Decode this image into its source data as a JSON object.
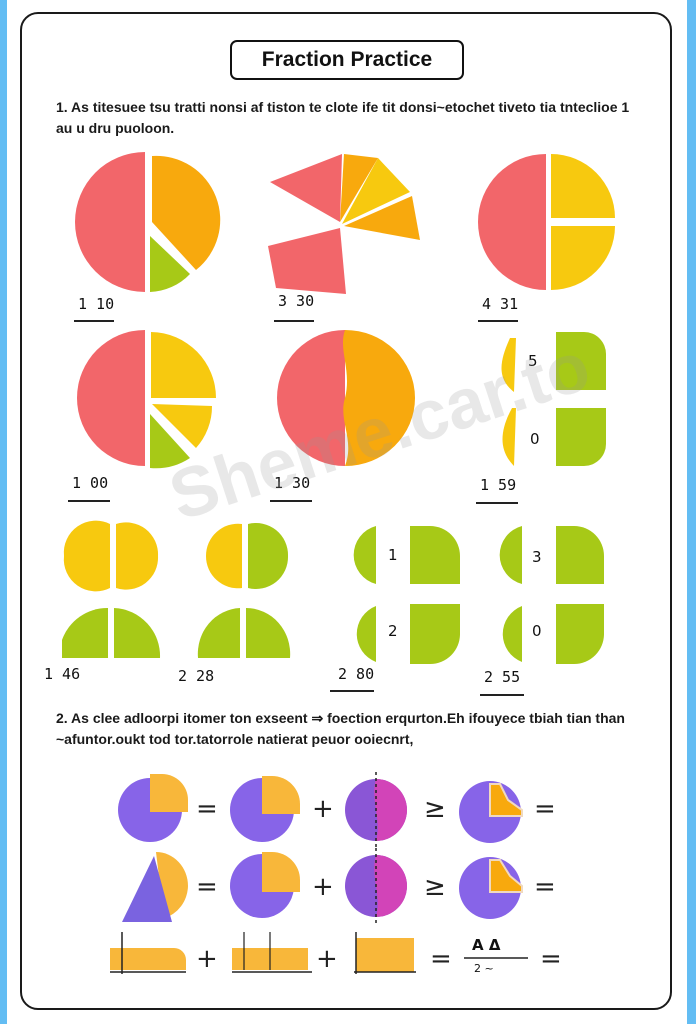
{
  "worksheet": {
    "title": "Fraction Practice",
    "instruction_1": "1.  As titesuee tsu tratti nonsi af tiston te clote ife tit donsi~etochet tiveto tia tnteclioe 1 au u dru puoloon.",
    "instruction_2": "2.  As clee adloorpi itomer ton exseent ⇒ foection erqurton.Eh ifouyece tbiah tian than ~afuntor.oukt tod tor.tatorrole natierat peuor ooiecnrt,",
    "watermark": "Sheme.car.to"
  },
  "pie_labels": [
    "1 10",
    "3 30",
    "4 31",
    "1 00",
    "1 30",
    "1 59"
  ],
  "tile_numbers_row2": [
    "5",
    "0"
  ],
  "quarter_labels": [
    "1 46",
    "2 28",
    "2 80",
    "2 55"
  ],
  "quarter_numbers": [
    "1",
    "2",
    "3",
    "0"
  ],
  "equation_ops": [
    "=",
    "+",
    "≥",
    "="
  ],
  "bottom_row": {
    "plus": "+",
    "equals": "=",
    "fraction_top": "A Δ",
    "fraction_bottom": "2 ~"
  },
  "colors": {
    "coral": "#f2666a",
    "orange": "#f8a90d",
    "yellow": "#f7c90f",
    "green": "#a7c917",
    "purple": "#8764e8",
    "magenta": "#d244b8",
    "accent_blue": "#63bdf3"
  }
}
